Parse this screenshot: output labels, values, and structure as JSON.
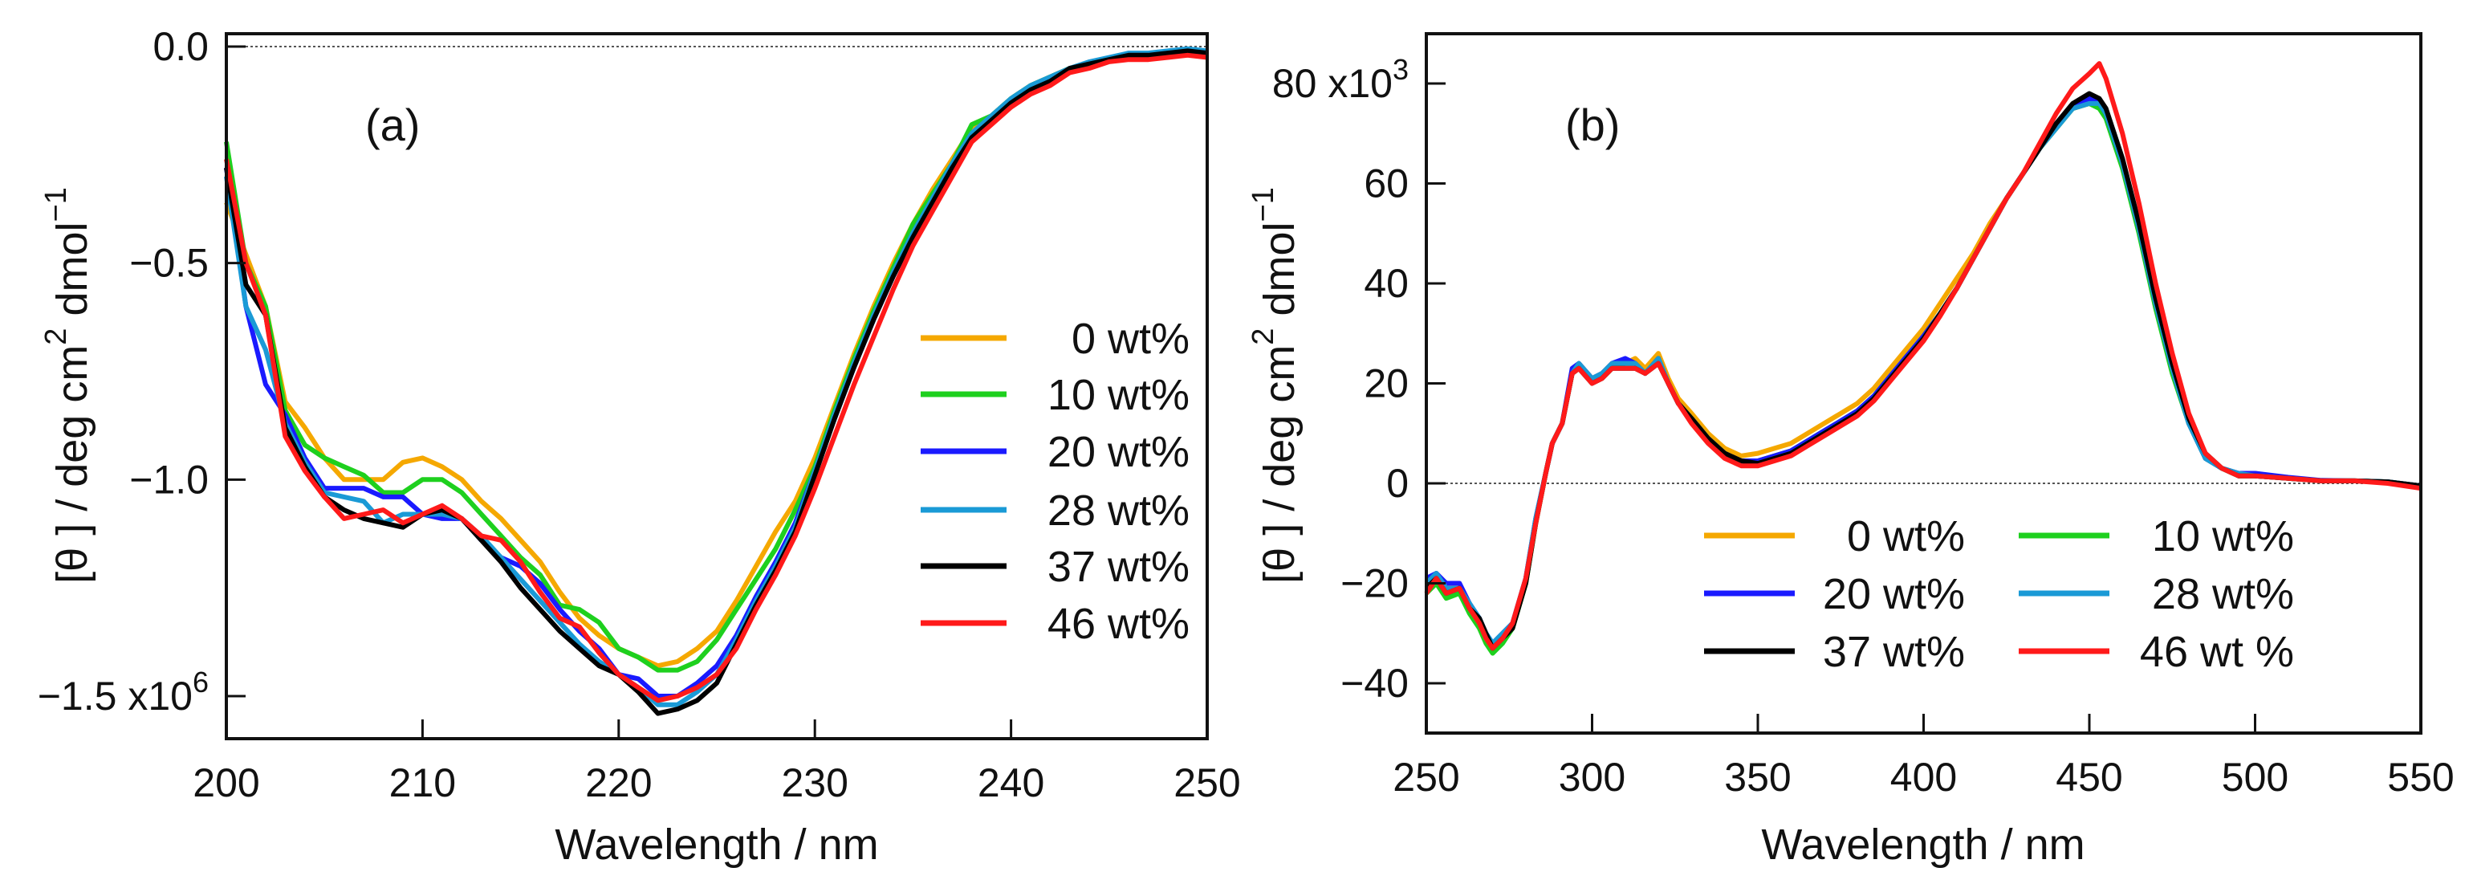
{
  "chart_data": [
    {
      "type": "line",
      "panel_label": "(a)",
      "xlabel": "Wavelength / nm",
      "ylabel": "[θ] / deg cm² dmol⁻¹",
      "ylabel_parts": {
        "main": "[θ ] / deg cm",
        "sup1": "2",
        "mid": " dmol",
        "sup2": "−1"
      },
      "xlim": [
        200,
        250
      ],
      "ylim": [
        -1.61,
        0.03
      ],
      "y_multiplier": "x10",
      "y_multiplier_exp": "6",
      "x_ticks": [
        200,
        210,
        220,
        230,
        240,
        250
      ],
      "x_tick_labels": [
        "200",
        "210",
        "220",
        "230",
        "240",
        "250"
      ],
      "y_ticks": [
        0,
        -0.5,
        -1.0,
        -1.5
      ],
      "y_tick_labels": [
        "0.0",
        "−0.5",
        "−1.0",
        "−1.5"
      ],
      "zero_line": true,
      "legend_placement": "right",
      "x": [
        200,
        201,
        202,
        203,
        204,
        205,
        206,
        207,
        208,
        209,
        210,
        211,
        212,
        213,
        214,
        215,
        216,
        217,
        218,
        219,
        220,
        221,
        222,
        223,
        224,
        225,
        226,
        227,
        228,
        229,
        230,
        231,
        232,
        233,
        234,
        235,
        236,
        237,
        238,
        239,
        240,
        241,
        242,
        243,
        244,
        245,
        246,
        247,
        248,
        249,
        250
      ],
      "series": [
        {
          "name": "0 wt%",
          "color": "#f5a800",
          "values": [
            -0.36,
            -0.48,
            -0.6,
            -0.82,
            -0.88,
            -0.95,
            -1.0,
            -1.0,
            -1.0,
            -0.96,
            -0.95,
            -0.97,
            -1.0,
            -1.05,
            -1.09,
            -1.14,
            -1.19,
            -1.26,
            -1.32,
            -1.36,
            -1.39,
            -1.41,
            -1.43,
            -1.42,
            -1.39,
            -1.35,
            -1.28,
            -1.2,
            -1.12,
            -1.05,
            -0.95,
            -0.83,
            -0.71,
            -0.6,
            -0.5,
            -0.41,
            -0.33,
            -0.26,
            -0.19,
            -0.16,
            -0.12,
            -0.09,
            -0.07,
            -0.05,
            -0.04,
            -0.03,
            -0.02,
            -0.02,
            -0.02,
            -0.01,
            -0.02
          ]
        },
        {
          "name": "10 wt%",
          "color": "#1ed01e",
          "values": [
            -0.22,
            -0.5,
            -0.6,
            -0.84,
            -0.92,
            -0.95,
            -0.97,
            -0.99,
            -1.03,
            -1.03,
            -1.0,
            -1.0,
            -1.03,
            -1.08,
            -1.13,
            -1.18,
            -1.22,
            -1.29,
            -1.3,
            -1.33,
            -1.39,
            -1.41,
            -1.44,
            -1.44,
            -1.42,
            -1.37,
            -1.3,
            -1.23,
            -1.16,
            -1.07,
            -0.97,
            -0.84,
            -0.72,
            -0.61,
            -0.51,
            -0.41,
            -0.34,
            -0.27,
            -0.18,
            -0.16,
            -0.12,
            -0.09,
            -0.07,
            -0.05,
            -0.04,
            -0.03,
            -0.02,
            -0.02,
            -0.02,
            -0.01,
            -0.015
          ]
        },
        {
          "name": "20 wt%",
          "color": "#1a1aff",
          "values": [
            -0.28,
            -0.6,
            -0.78,
            -0.85,
            -0.95,
            -1.02,
            -1.02,
            -1.02,
            -1.04,
            -1.04,
            -1.08,
            -1.09,
            -1.09,
            -1.14,
            -1.18,
            -1.2,
            -1.24,
            -1.3,
            -1.35,
            -1.39,
            -1.45,
            -1.46,
            -1.5,
            -1.5,
            -1.47,
            -1.43,
            -1.36,
            -1.27,
            -1.19,
            -1.1,
            -0.98,
            -0.86,
            -0.74,
            -0.63,
            -0.53,
            -0.44,
            -0.36,
            -0.28,
            -0.21,
            -0.17,
            -0.13,
            -0.1,
            -0.08,
            -0.05,
            -0.04,
            -0.03,
            -0.02,
            -0.02,
            -0.015,
            -0.01,
            -0.015
          ]
        },
        {
          "name": "28 wt%",
          "color": "#1a9ad6",
          "values": [
            -0.3,
            -0.6,
            -0.7,
            -0.87,
            -0.96,
            -1.03,
            -1.04,
            -1.05,
            -1.1,
            -1.08,
            -1.08,
            -1.08,
            -1.09,
            -1.13,
            -1.18,
            -1.23,
            -1.28,
            -1.33,
            -1.38,
            -1.42,
            -1.45,
            -1.48,
            -1.52,
            -1.52,
            -1.49,
            -1.45,
            -1.37,
            -1.28,
            -1.2,
            -1.11,
            -0.98,
            -0.85,
            -0.73,
            -0.62,
            -0.52,
            -0.43,
            -0.35,
            -0.27,
            -0.2,
            -0.16,
            -0.12,
            -0.09,
            -0.07,
            -0.05,
            -0.035,
            -0.025,
            -0.015,
            -0.015,
            -0.01,
            -0.005,
            -0.01
          ]
        },
        {
          "name": "37 wt%",
          "color": "#000000",
          "values": [
            -0.28,
            -0.55,
            -0.62,
            -0.88,
            -0.97,
            -1.04,
            -1.07,
            -1.09,
            -1.1,
            -1.11,
            -1.08,
            -1.07,
            -1.09,
            -1.14,
            -1.19,
            -1.25,
            -1.3,
            -1.35,
            -1.39,
            -1.43,
            -1.45,
            -1.49,
            -1.54,
            -1.53,
            -1.51,
            -1.47,
            -1.38,
            -1.29,
            -1.21,
            -1.12,
            -0.99,
            -0.86,
            -0.74,
            -0.63,
            -0.53,
            -0.44,
            -0.36,
            -0.28,
            -0.21,
            -0.17,
            -0.13,
            -0.1,
            -0.08,
            -0.05,
            -0.04,
            -0.03,
            -0.02,
            -0.02,
            -0.015,
            -0.01,
            -0.015
          ]
        },
        {
          "name": "46 wt%",
          "color": "#ff1a1a",
          "values": [
            -0.26,
            -0.5,
            -0.62,
            -0.9,
            -0.98,
            -1.04,
            -1.09,
            -1.08,
            -1.07,
            -1.1,
            -1.08,
            -1.06,
            -1.09,
            -1.13,
            -1.14,
            -1.19,
            -1.26,
            -1.32,
            -1.34,
            -1.4,
            -1.45,
            -1.48,
            -1.51,
            -1.5,
            -1.48,
            -1.45,
            -1.39,
            -1.3,
            -1.22,
            -1.13,
            -1.02,
            -0.9,
            -0.78,
            -0.67,
            -0.56,
            -0.46,
            -0.38,
            -0.3,
            -0.22,
            -0.18,
            -0.14,
            -0.11,
            -0.09,
            -0.06,
            -0.05,
            -0.035,
            -0.03,
            -0.03,
            -0.025,
            -0.02,
            -0.025
          ]
        }
      ]
    },
    {
      "type": "line",
      "panel_label": "(b)",
      "xlabel": "Wavelength / nm",
      "ylabel": "[θ] / deg cm² dmol⁻¹",
      "ylabel_parts": {
        "main": "[θ ] / deg cm",
        "sup1": "2",
        "mid": " dmol",
        "sup2": "−1"
      },
      "xlim": [
        250,
        550
      ],
      "ylim": [
        -50,
        90
      ],
      "y_multiplier": "x10",
      "y_multiplier_exp": "3",
      "x_ticks": [
        250,
        300,
        350,
        400,
        450,
        500,
        550
      ],
      "x_tick_labels": [
        "250",
        "300",
        "350",
        "400",
        "450",
        "500",
        "550"
      ],
      "y_ticks": [
        -40,
        -20,
        0,
        20,
        40,
        60,
        80
      ],
      "y_tick_labels": [
        "−40",
        "−20",
        "0",
        "20",
        "40",
        "60",
        "80"
      ],
      "zero_line": true,
      "legend_placement": "bottom-center (2 columns)",
      "x": [
        250,
        253,
        256,
        260,
        263,
        266,
        268,
        270,
        273,
        276,
        280,
        283,
        286,
        288,
        291,
        294,
        296,
        300,
        303,
        306,
        310,
        313,
        316,
        320,
        323,
        326,
        330,
        335,
        340,
        345,
        350,
        355,
        360,
        365,
        370,
        375,
        380,
        385,
        390,
        395,
        400,
        405,
        410,
        415,
        420,
        425,
        430,
        435,
        440,
        445,
        450,
        453,
        455,
        460,
        465,
        470,
        475,
        480,
        485,
        490,
        495,
        500,
        510,
        520,
        530,
        540,
        550
      ],
      "series": [
        {
          "name": "0 wt%",
          "color": "#f5a800",
          "values": [
            -20,
            -18,
            -21,
            -21,
            -24,
            -28,
            -31,
            -33,
            -31,
            -29,
            -20,
            -8,
            2,
            8,
            12,
            22,
            24,
            21,
            22,
            24,
            24,
            25,
            23,
            26,
            21,
            17,
            14,
            10,
            7,
            5.5,
            6,
            7,
            8,
            10,
            12,
            14,
            16,
            19,
            23,
            27,
            31,
            36,
            41,
            46,
            52,
            57,
            62,
            67,
            71,
            75,
            76,
            76,
            74,
            64,
            51,
            36,
            23,
            12,
            5,
            3,
            2,
            2,
            1,
            0.5,
            0.5,
            0.3,
            -0.5
          ]
        },
        {
          "name": "10 wt%",
          "color": "#1ed01e",
          "values": [
            -22,
            -20,
            -23,
            -22,
            -26,
            -29,
            -32,
            -34,
            -32,
            -29,
            -20,
            -8,
            2,
            8,
            12,
            22,
            23,
            21,
            21,
            23,
            24,
            24,
            22,
            25,
            20,
            16,
            13,
            9,
            6,
            4.5,
            4.5,
            5.5,
            6.5,
            8.5,
            10.5,
            12.5,
            14.5,
            17.5,
            21.5,
            25.5,
            29.5,
            34,
            39,
            45,
            51,
            57,
            62,
            67,
            71,
            75,
            76,
            75,
            73,
            63,
            50,
            35,
            22,
            12,
            5,
            3,
            1.5,
            1.5,
            1,
            0.5,
            0.5,
            0.3,
            -0.5
          ]
        },
        {
          "name": "20 wt%",
          "color": "#1a1aff",
          "values": [
            -19,
            -18,
            -20,
            -20,
            -24,
            -27,
            -30,
            -32,
            -30,
            -28,
            -19,
            -7,
            2,
            8,
            12,
            23,
            24,
            21,
            22,
            24,
            25,
            24,
            22,
            25,
            20,
            16,
            13,
            9,
            6,
            4.5,
            4.5,
            5.5,
            6.5,
            8.5,
            10.5,
            12.5,
            14.5,
            17.5,
            21.5,
            25.5,
            29.5,
            34,
            39,
            45,
            51,
            57,
            62,
            67,
            72,
            75,
            77,
            76,
            74,
            64,
            51,
            36,
            23,
            12,
            5,
            3,
            2,
            2,
            1.2,
            0.6,
            0.5,
            0.3,
            -0.5
          ]
        },
        {
          "name": "28 wt%",
          "color": "#1a9ad6",
          "values": [
            -20,
            -18,
            -21,
            -21,
            -24,
            -27,
            -30,
            -32,
            -30,
            -28,
            -19,
            -7,
            2,
            8,
            12,
            22,
            24,
            21,
            22,
            24,
            24,
            24,
            22,
            25,
            20,
            16,
            13,
            9,
            6,
            4,
            4,
            5,
            6,
            8,
            10,
            12,
            14,
            17,
            21,
            25,
            29,
            34,
            39,
            45,
            51,
            57,
            62,
            67,
            71,
            75,
            76,
            76,
            74,
            64,
            51,
            36,
            23,
            12,
            5,
            3,
            2,
            1.5,
            1,
            0.5,
            0.5,
            0.3,
            -0.5
          ]
        },
        {
          "name": "37 wt%",
          "color": "#000000",
          "values": [
            -21,
            -19,
            -22,
            -21,
            -25,
            -27,
            -30,
            -33,
            -31,
            -29,
            -20,
            -8,
            2,
            8,
            12,
            22,
            23,
            20,
            21,
            23,
            23,
            23,
            22,
            24,
            20,
            16,
            13,
            9,
            6,
            4.5,
            4,
            5,
            6,
            8,
            10,
            12,
            14,
            17,
            21,
            25,
            29,
            34,
            39,
            45,
            51,
            57,
            62,
            67,
            72,
            76,
            78,
            77,
            75,
            65,
            52,
            37,
            24,
            13,
            6,
            3,
            1.5,
            1.5,
            1,
            0.5,
            0.5,
            0.3,
            -0.5
          ]
        },
        {
          "name": "46 wt %",
          "color": "#ff1a1a",
          "values": [
            -22,
            -19,
            -22,
            -21,
            -25,
            -28,
            -31,
            -33,
            -31,
            -28,
            -19,
            -8,
            2,
            8,
            12,
            22,
            23,
            20,
            21,
            23,
            23,
            23,
            22,
            24,
            20,
            16,
            12,
            8,
            5,
            3.5,
            3.5,
            4.5,
            5.5,
            7.5,
            9.5,
            11.5,
            13.5,
            16.5,
            20.5,
            24.5,
            28.5,
            33.5,
            39,
            45,
            51,
            57,
            62,
            68,
            74,
            79,
            82,
            84,
            81,
            70,
            56,
            40,
            26,
            14,
            6,
            3,
            1.5,
            1.5,
            1,
            0.5,
            0.5,
            0,
            -1
          ]
        }
      ]
    }
  ]
}
